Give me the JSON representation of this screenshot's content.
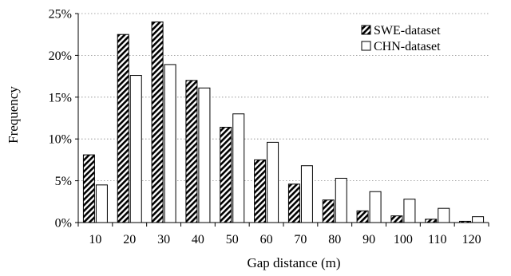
{
  "chart_data": {
    "type": "bar",
    "title": "",
    "xlabel": "Gap distance (m)",
    "ylabel": "Frequency",
    "categories": [
      "10",
      "20",
      "30",
      "40",
      "50",
      "60",
      "70",
      "80",
      "90",
      "100",
      "110",
      "120"
    ],
    "ylim": [
      0,
      25
    ],
    "yticks": [
      "0%",
      "5%",
      "10%",
      "15%",
      "20%",
      "25%"
    ],
    "ytick_values": [
      0,
      5,
      10,
      15,
      20,
      25
    ],
    "grid": "horizontal",
    "legend_position": "top-right",
    "series": [
      {
        "name": "SWE-dataset",
        "fill": "hatched",
        "color": "#000000",
        "values": [
          8.1,
          22.5,
          24.0,
          17.0,
          11.4,
          7.5,
          4.6,
          2.7,
          1.4,
          0.8,
          0.4,
          0.15
        ]
      },
      {
        "name": "CHN-dataset",
        "fill": "white",
        "color": "#000000",
        "values": [
          4.5,
          17.6,
          18.9,
          16.1,
          13.0,
          9.6,
          6.8,
          5.3,
          3.7,
          2.8,
          1.7,
          0.7
        ]
      }
    ]
  }
}
